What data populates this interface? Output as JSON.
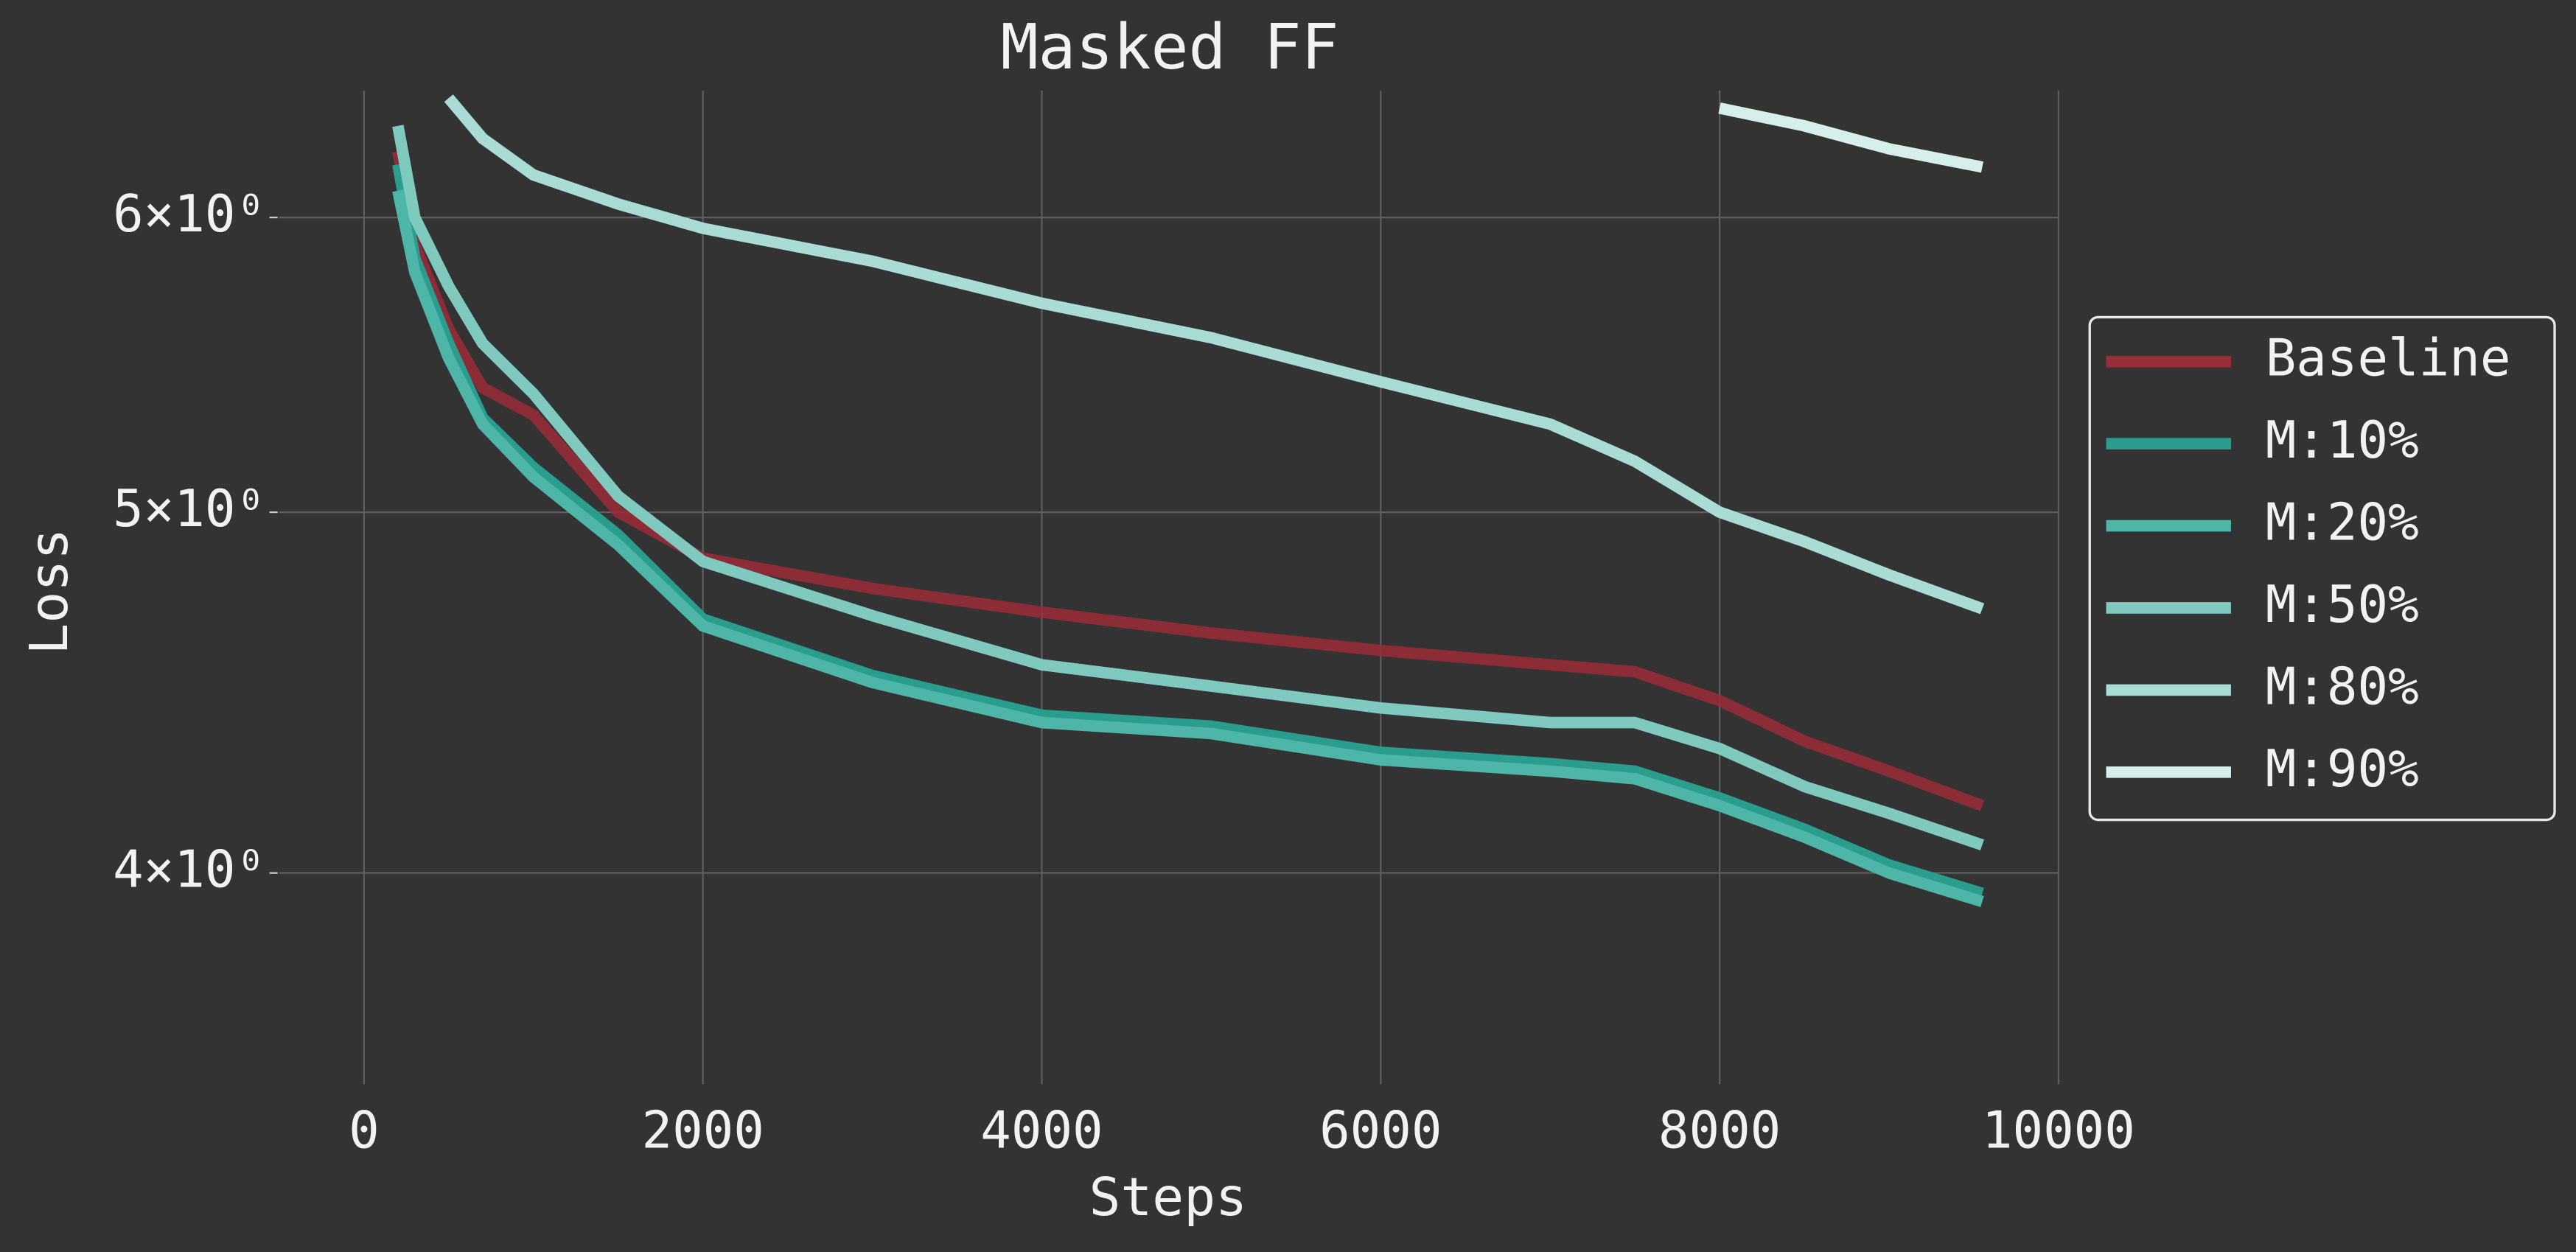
{
  "chart_data": {
    "type": "line",
    "title": "Masked FF",
    "x_label": "Steps",
    "y_label": "Loss",
    "log_y": true,
    "grid": true,
    "legend": "right",
    "x": [
      200,
      300,
      500,
      700,
      1000,
      1500,
      2000,
      3000,
      4000,
      5000,
      6000,
      7000,
      7500,
      8000,
      8500,
      9000,
      9550
    ],
    "xlim": [
      -500,
      10000
    ],
    "xticks": [
      0,
      2000,
      4000,
      6000,
      8000,
      10000
    ],
    "ylim": [
      3.51,
      6.49
    ],
    "yticks": [
      {
        "value": 4,
        "label": "4×10⁰"
      },
      {
        "value": 5,
        "label": "5×10⁰"
      },
      {
        "value": 6,
        "label": "6×10⁰"
      }
    ],
    "series": [
      {
        "name": "Baseline",
        "color": "#9b2c38",
        "values": [
          6.25,
          5.9,
          5.6,
          5.4,
          5.31,
          5.0,
          4.86,
          4.77,
          4.7,
          4.64,
          4.59,
          4.55,
          4.53,
          4.45,
          4.34,
          4.26,
          4.17
        ]
      },
      {
        "name": "M:10%",
        "color": "#2a9d8f",
        "values": [
          6.2,
          5.85,
          5.55,
          5.3,
          5.14,
          4.93,
          4.68,
          4.52,
          4.41,
          4.38,
          4.31,
          4.28,
          4.26,
          4.19,
          4.11,
          4.02,
          3.95
        ]
      },
      {
        "name": "M:20%",
        "color": "#4db6a9",
        "values": [
          6.1,
          5.8,
          5.5,
          5.28,
          5.11,
          4.9,
          4.66,
          4.5,
          4.39,
          4.36,
          4.29,
          4.26,
          4.24,
          4.17,
          4.09,
          4.0,
          3.93
        ]
      },
      {
        "name": "M:50%",
        "color": "#80c9bf",
        "values": [
          6.35,
          6.0,
          5.75,
          5.55,
          5.38,
          5.05,
          4.85,
          4.69,
          4.55,
          4.49,
          4.43,
          4.39,
          4.39,
          4.32,
          4.22,
          4.15,
          4.07
        ]
      },
      {
        "name": "M:80%",
        "color": "#a9dcd4",
        "values": [
          null,
          null,
          6.46,
          6.3,
          6.16,
          6.05,
          5.96,
          5.84,
          5.69,
          5.57,
          5.42,
          5.28,
          5.16,
          5.0,
          4.91,
          4.81,
          4.71
        ]
      },
      {
        "name": "M:90%",
        "color": "#d6efeb",
        "values": [
          null,
          null,
          null,
          null,
          null,
          null,
          null,
          null,
          null,
          null,
          null,
          null,
          null,
          6.42,
          6.35,
          6.26,
          6.19
        ]
      }
    ]
  }
}
